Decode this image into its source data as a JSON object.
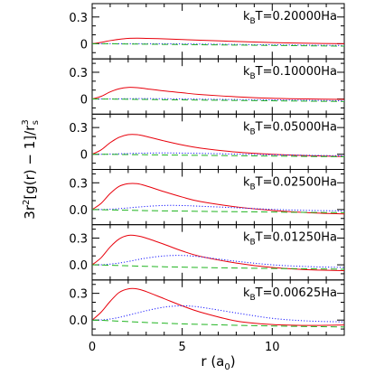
{
  "chart_data": {
    "type": "line",
    "xlabel": "r (a₀)",
    "ylabel": "3r²[g(r) − 1]/r³ₛ",
    "xlim": [
      0,
      14
    ],
    "ylim": [
      -0.17,
      0.45
    ],
    "x_ticks": [
      0,
      5,
      10
    ],
    "y_ticks": [
      "0",
      "0.3"
    ],
    "x_tick_labels": [
      "0",
      "5",
      "10"
    ],
    "y_tick_labels": {
      "0.3": "0.3",
      "0": "0"
    },
    "y_tick_labels_lower": {
      "0.3": "0.3",
      "0": "0.0"
    },
    "series_style": [
      {
        "color": "#e8000b",
        "dash": "solid"
      },
      {
        "color": "#1a1aff",
        "dash": "dotted"
      },
      {
        "color": "#22b522",
        "dash": "dashed"
      }
    ],
    "panels": [
      {
        "label": "k_BT=0.20000Ha",
        "y_zero_label": "0",
        "x": [
          0,
          0.5,
          1,
          1.5,
          2,
          2.5,
          3,
          4,
          5,
          6,
          8,
          10,
          12,
          14
        ],
        "series": [
          {
            "values": [
              0,
              0.015,
              0.035,
              0.05,
              0.06,
              0.062,
              0.06,
              0.055,
              0.047,
              0.04,
              0.025,
              0.013,
              0.005,
              0.0
            ]
          },
          {
            "values": [
              0,
              0.0,
              0.0,
              0.0,
              0.0,
              0.0,
              0.0,
              0.0,
              -0.002,
              -0.004,
              -0.008,
              -0.012,
              -0.016,
              -0.02
            ]
          },
          {
            "values": [
              0,
              0.0,
              0.0,
              -0.002,
              -0.003,
              -0.004,
              -0.005,
              -0.007,
              -0.009,
              -0.011,
              -0.015,
              -0.019,
              -0.023,
              -0.027
            ]
          }
        ]
      },
      {
        "label": "k_BT=0.10000Ha",
        "y_zero_label": "0",
        "x": [
          0,
          0.5,
          1,
          1.5,
          2,
          2.5,
          3,
          4,
          5,
          6,
          8,
          10,
          12,
          14
        ],
        "series": [
          {
            "values": [
              0,
              0.03,
              0.08,
              0.115,
              0.13,
              0.127,
              0.115,
              0.09,
              0.07,
              0.05,
              0.025,
              0.008,
              0.0,
              -0.005
            ]
          },
          {
            "values": [
              0,
              0.0,
              0.001,
              0.002,
              0.003,
              0.004,
              0.004,
              0.003,
              0.001,
              -0.002,
              -0.006,
              -0.01,
              -0.015,
              -0.02
            ]
          },
          {
            "values": [
              0,
              0.0,
              -0.001,
              -0.002,
              -0.003,
              -0.004,
              -0.005,
              -0.008,
              -0.01,
              -0.012,
              -0.016,
              -0.02,
              -0.024,
              -0.028
            ]
          }
        ]
      },
      {
        "label": "k_BT=0.05000Ha",
        "y_zero_label": "0",
        "x": [
          0,
          0.5,
          1,
          1.5,
          2,
          2.5,
          3,
          4,
          5,
          6,
          8,
          10,
          12,
          14
        ],
        "series": [
          {
            "values": [
              0,
              0.05,
              0.13,
              0.19,
              0.22,
              0.22,
              0.2,
              0.15,
              0.105,
              0.07,
              0.025,
              0.0,
              -0.015,
              -0.025
            ]
          },
          {
            "values": [
              0,
              0.0,
              0.002,
              0.005,
              0.008,
              0.011,
              0.013,
              0.015,
              0.013,
              0.01,
              0.002,
              -0.006,
              -0.012,
              -0.017
            ]
          },
          {
            "values": [
              0,
              0.0,
              -0.001,
              -0.002,
              -0.003,
              -0.004,
              -0.005,
              -0.008,
              -0.01,
              -0.012,
              -0.016,
              -0.02,
              -0.024,
              -0.028
            ]
          }
        ]
      },
      {
        "label": "k_BT=0.02500Ha",
        "y_zero_label": "0.0",
        "x": [
          0,
          0.5,
          1,
          1.5,
          2,
          2.5,
          3,
          4,
          5,
          6,
          8,
          10,
          12,
          14
        ],
        "series": [
          {
            "values": [
              0,
              0.07,
              0.18,
              0.26,
              0.29,
              0.29,
              0.265,
              0.2,
              0.14,
              0.09,
              0.03,
              -0.01,
              -0.035,
              -0.05
            ]
          },
          {
            "values": [
              0,
              0.0,
              0.004,
              0.01,
              0.018,
              0.027,
              0.035,
              0.046,
              0.045,
              0.037,
              0.02,
              0.002,
              -0.01,
              -0.015
            ]
          },
          {
            "values": [
              0,
              -0.002,
              -0.004,
              -0.006,
              -0.008,
              -0.01,
              -0.012,
              -0.015,
              -0.017,
              -0.02,
              -0.024,
              -0.028,
              -0.032,
              -0.035
            ]
          }
        ]
      },
      {
        "label": "k_BT=0.01250Ha",
        "y_zero_label": "0.0",
        "x": [
          0,
          0.5,
          1,
          1.5,
          2,
          2.5,
          3,
          4,
          5,
          6,
          8,
          10,
          12,
          14
        ],
        "series": [
          {
            "values": [
              0,
              0.08,
              0.2,
              0.29,
              0.33,
              0.325,
              0.3,
              0.23,
              0.155,
              0.095,
              0.02,
              -0.03,
              -0.055,
              -0.065
            ]
          },
          {
            "values": [
              0,
              0.0,
              0.008,
              0.02,
              0.037,
              0.057,
              0.075,
              0.1,
              0.105,
              0.09,
              0.04,
              0.0,
              -0.02,
              -0.03
            ]
          },
          {
            "values": [
              0,
              -0.002,
              -0.005,
              -0.008,
              -0.011,
              -0.014,
              -0.017,
              -0.022,
              -0.026,
              -0.03,
              -0.036,
              -0.041,
              -0.045,
              -0.05
            ]
          }
        ]
      },
      {
        "label": "k_BT=0.00625Ha",
        "y_zero_label": "0.0",
        "x": [
          0,
          0.5,
          1,
          1.5,
          2,
          2.5,
          3,
          4,
          5,
          6,
          8,
          10,
          12,
          14
        ],
        "series": [
          {
            "values": [
              0,
              0.09,
              0.21,
              0.31,
              0.35,
              0.35,
              0.32,
              0.24,
              0.16,
              0.09,
              -0.01,
              -0.05,
              -0.06,
              -0.055
            ]
          },
          {
            "values": [
              0,
              0.002,
              0.012,
              0.03,
              0.055,
              0.08,
              0.105,
              0.145,
              0.16,
              0.145,
              0.08,
              0.02,
              -0.01,
              -0.02
            ]
          },
          {
            "values": [
              0,
              -0.003,
              -0.007,
              -0.012,
              -0.017,
              -0.022,
              -0.027,
              -0.035,
              -0.042,
              -0.048,
              -0.058,
              -0.066,
              -0.072,
              -0.077
            ]
          }
        ]
      }
    ]
  }
}
